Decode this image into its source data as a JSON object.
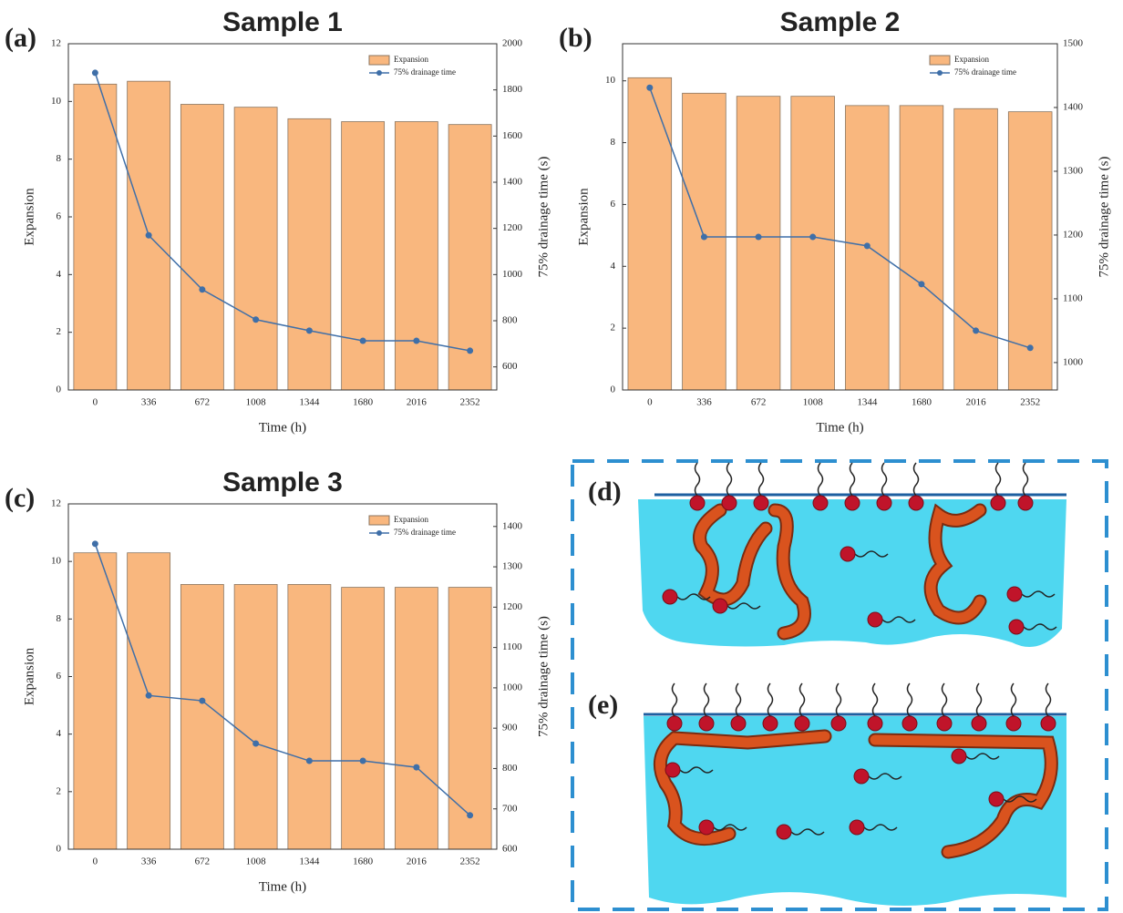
{
  "chart_data": [
    {
      "type": "bar",
      "panel_label": "(a)",
      "title": "Sample 1",
      "xlabel": "Time (h)",
      "ylabel": "Expansion",
      "y2label": "75% drainage time (s)",
      "categories": [
        "0",
        "336",
        "672",
        "1008",
        "1344",
        "1680",
        "2016",
        "2352"
      ],
      "ylim": [
        0,
        12
      ],
      "yticks": [
        0,
        2,
        4,
        6,
        8,
        10,
        12
      ],
      "y2lim": [
        500,
        2000
      ],
      "y2ticks": [
        600,
        800,
        1000,
        1200,
        1400,
        1600,
        1800,
        2000
      ],
      "legend": "upper right",
      "series": [
        {
          "name": "Expansion",
          "type": "bar",
          "color": "#f9b77e",
          "values": [
            10.6,
            10.7,
            9.9,
            9.8,
            9.4,
            9.3,
            9.3,
            9.2
          ]
        },
        {
          "name": "75% drainage time",
          "type": "line",
          "axis": "y2",
          "color": "#3f6fa8",
          "values": [
            1874,
            1170,
            935,
            805,
            757,
            713,
            713,
            670
          ]
        }
      ]
    },
    {
      "type": "bar",
      "panel_label": "(b)",
      "title": "Sample 2",
      "xlabel": "Time (h)",
      "ylabel": "Expansion",
      "y2label": "75% drainage time (s)",
      "categories": [
        "0",
        "336",
        "672",
        "1008",
        "1344",
        "1680",
        "2016",
        "2352"
      ],
      "ylim": [
        0,
        11.2
      ],
      "yticks": [
        0,
        2,
        4,
        6,
        8,
        10
      ],
      "y2lim": [
        957,
        1500
      ],
      "y2ticks": [
        1000,
        1100,
        1200,
        1300,
        1400,
        1500
      ],
      "legend": "upper right",
      "series": [
        {
          "name": "Expansion",
          "type": "bar",
          "color": "#f9b77e",
          "values": [
            10.1,
            9.6,
            9.5,
            9.5,
            9.2,
            9.2,
            9.1,
            9.0
          ]
        },
        {
          "name": "75% drainage time",
          "type": "line",
          "axis": "y2",
          "color": "#3f6fa8",
          "values": [
            1431,
            1197,
            1197,
            1197,
            1183,
            1123,
            1050,
            1023
          ]
        }
      ]
    },
    {
      "type": "bar",
      "panel_label": "(c)",
      "title": "Sample 3",
      "xlabel": "Time (h)",
      "ylabel": "Expansion",
      "y2label": "75% drainage time (s)",
      "categories": [
        "0",
        "336",
        "672",
        "1008",
        "1344",
        "1680",
        "2016",
        "2352"
      ],
      "ylim": [
        0,
        12
      ],
      "yticks": [
        0,
        2,
        4,
        6,
        8,
        10,
        12
      ],
      "y2lim": [
        600,
        1456
      ],
      "y2ticks": [
        600,
        700,
        800,
        900,
        1000,
        1100,
        1200,
        1300,
        1400
      ],
      "legend": "upper right",
      "series": [
        {
          "name": "Expansion",
          "type": "bar",
          "color": "#f9b77e",
          "values": [
            10.3,
            10.3,
            9.2,
            9.2,
            9.2,
            9.1,
            9.1,
            9.1
          ]
        },
        {
          "name": "75% drainage time",
          "type": "line",
          "axis": "y2",
          "color": "#3f6fa8",
          "values": [
            1357,
            981,
            968,
            862,
            819,
            819,
            803,
            684
          ]
        }
      ]
    }
  ],
  "diagram": {
    "labels": [
      "(d)",
      "(e)"
    ]
  }
}
